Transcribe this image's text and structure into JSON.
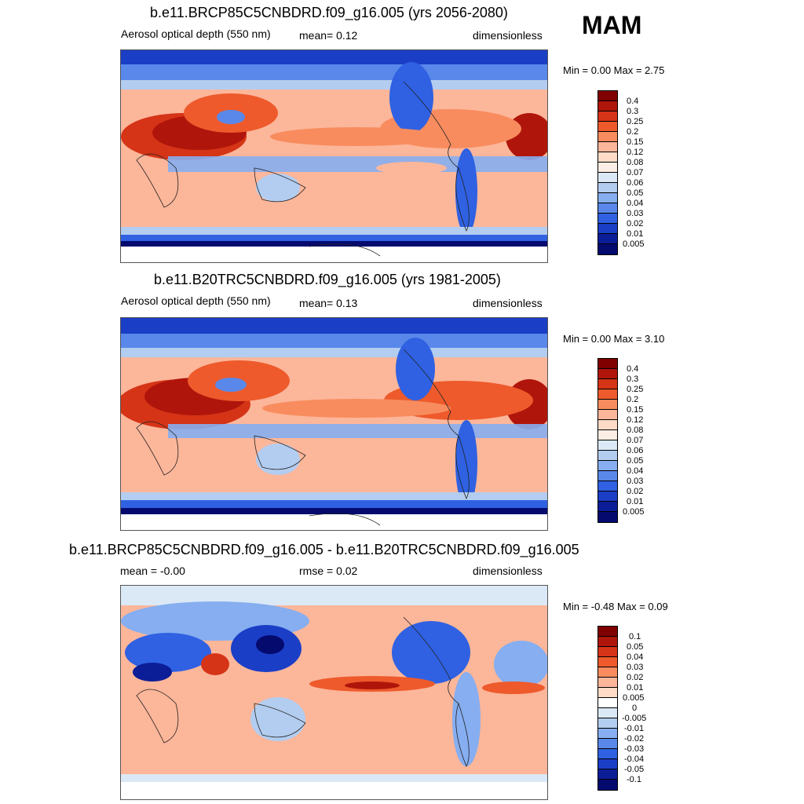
{
  "season": "MAM",
  "panels": [
    {
      "title": "b.e11.BRCP85C5CNBDRD.f09_g16.005 (yrs 2056-2080)",
      "left": "Aerosol optical depth (550 nm)",
      "middle": "mean=   0.12",
      "right": "dimensionless",
      "minmax": "Min =    0.00 Max =    2.75",
      "levels": [
        "0.4",
        "0.3",
        "0.25",
        "0.2",
        "0.15",
        "0.12",
        "0.08",
        "0.07",
        "0.06",
        "0.05",
        "0.04",
        "0.03",
        "0.02",
        "0.01",
        "0.005"
      ]
    },
    {
      "title": "b.e11.B20TRC5CNBDRD.f09_g16.005 (yrs 1981-2005)",
      "left": "Aerosol optical depth (550 nm)",
      "middle": "mean=   0.13",
      "right": "dimensionless",
      "minmax": "Min =    0.00 Max =    3.10",
      "levels": [
        "0.4",
        "0.3",
        "0.25",
        "0.2",
        "0.15",
        "0.12",
        "0.08",
        "0.07",
        "0.06",
        "0.05",
        "0.04",
        "0.03",
        "0.02",
        "0.01",
        "0.005"
      ]
    },
    {
      "title": "b.e11.BRCP85C5CNBDRD.f09_g16.005 - b.e11.B20TRC5CNBDRD.f09_g16.005",
      "left": "mean =  -0.00",
      "middle": "rmse =   0.02",
      "right": "dimensionless",
      "minmax": "Min =  -0.48 Max =    0.09",
      "levels": [
        "0.1",
        "0.05",
        "0.04",
        "0.03",
        "0.02",
        "0.01",
        "0.005",
        "0",
        "-0.005",
        "-0.01",
        "-0.02",
        "-0.03",
        "-0.04",
        "-0.05",
        "-0.1"
      ]
    }
  ],
  "colors": {
    "abs": [
      "#800000",
      "#b0150b",
      "#d53417",
      "#ee5a2b",
      "#f88c5e",
      "#fcb69a",
      "#fddbc7",
      "#fdeee5",
      "#dbe9f6",
      "#b3cdf0",
      "#86aef0",
      "#5a88ea",
      "#2f61e2",
      "#1a3ec6",
      "#0c1d98",
      "#050a6e"
    ],
    "diff": [
      "#800000",
      "#b0150b",
      "#d53417",
      "#ee5a2b",
      "#f88c5e",
      "#fcb69a",
      "#fddbc7",
      "#ffffff",
      "#dbe9f6",
      "#b3cdf0",
      "#86aef0",
      "#5a88ea",
      "#2f61e2",
      "#1a3ec6",
      "#0c1d98",
      "#050a6e"
    ]
  }
}
